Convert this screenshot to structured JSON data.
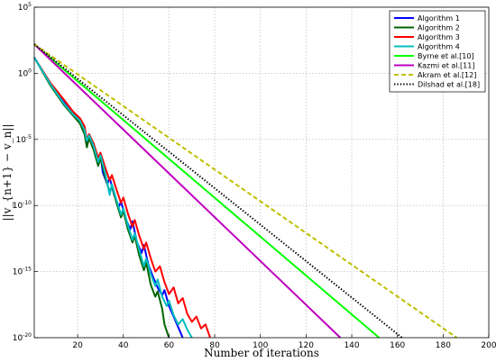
{
  "chart_data": {
    "type": "line",
    "title": "",
    "xlabel": "Number of iterations",
    "ylabel": "||v_{n+1} − v_n||",
    "xlim": [
      1,
      200
    ],
    "ylim_log10": [
      -20,
      5
    ],
    "y_scale": "log",
    "grid": true,
    "legend_position": "top-right",
    "x_ticks": [
      "20",
      "40",
      "60",
      "80",
      "100",
      "120",
      "140",
      "160",
      "180",
      "200"
    ],
    "y_ticks": [
      "10^5",
      "10^0",
      "10^-5",
      "10^-10",
      "10^-15",
      "10^-20"
    ],
    "series": [
      {
        "name": "Algorithm 1",
        "color": "#0000ff",
        "dash": "solid",
        "points": [
          [
            1,
            1.2
          ],
          [
            8,
            -0.8
          ],
          [
            14,
            -2.2
          ],
          [
            18,
            -3.0
          ],
          [
            21,
            -3.5
          ],
          [
            23,
            -4.2
          ],
          [
            24,
            -5.4
          ],
          [
            25,
            -4.9
          ],
          [
            27,
            -5.6
          ],
          [
            29,
            -6.8
          ],
          [
            30,
            -6.2
          ],
          [
            31,
            -7.5
          ],
          [
            33,
            -8.4
          ],
          [
            34,
            -7.9
          ],
          [
            36,
            -9.2
          ],
          [
            38,
            -10.1
          ],
          [
            39,
            -9.7
          ],
          [
            41,
            -11.0
          ],
          [
            43,
            -11.8
          ],
          [
            44,
            -11.2
          ],
          [
            46,
            -12.8
          ],
          [
            48,
            -13.6
          ],
          [
            49,
            -13.0
          ],
          [
            51,
            -14.5
          ],
          [
            53,
            -15.4
          ],
          [
            55,
            -16.2
          ],
          [
            57,
            -16.8
          ],
          [
            58,
            -16.4
          ],
          [
            60,
            -17.6
          ],
          [
            62,
            -18.4
          ],
          [
            64,
            -19.2
          ],
          [
            66,
            -20.0
          ]
        ]
      },
      {
        "name": "Algorithm 2",
        "color": "#006400",
        "dash": "solid",
        "points": [
          [
            1,
            1.2
          ],
          [
            8,
            -0.9
          ],
          [
            14,
            -2.4
          ],
          [
            18,
            -3.2
          ],
          [
            21,
            -3.8
          ],
          [
            23,
            -4.6
          ],
          [
            24,
            -5.6
          ],
          [
            25,
            -4.9
          ],
          [
            27,
            -5.8
          ],
          [
            29,
            -7.0
          ],
          [
            30,
            -6.4
          ],
          [
            32,
            -7.8
          ],
          [
            34,
            -9.0
          ],
          [
            35,
            -8.5
          ],
          [
            37,
            -9.8
          ],
          [
            39,
            -10.9
          ],
          [
            40,
            -10.4
          ],
          [
            42,
            -11.8
          ],
          [
            44,
            -12.8
          ],
          [
            45,
            -12.3
          ],
          [
            47,
            -13.8
          ],
          [
            49,
            -14.9
          ],
          [
            50,
            -14.3
          ],
          [
            52,
            -16.0
          ],
          [
            54,
            -16.9
          ],
          [
            55,
            -16.5
          ],
          [
            57,
            -17.8
          ],
          [
            58,
            -19.0
          ],
          [
            60,
            -20.0
          ]
        ]
      },
      {
        "name": "Algorithm 3",
        "color": "#ff0000",
        "dash": "solid",
        "points": [
          [
            1,
            1.2
          ],
          [
            8,
            -0.7
          ],
          [
            14,
            -2.0
          ],
          [
            18,
            -2.9
          ],
          [
            21,
            -3.4
          ],
          [
            23,
            -4.0
          ],
          [
            24,
            -5.0
          ],
          [
            25,
            -4.6
          ],
          [
            27,
            -5.3
          ],
          [
            29,
            -6.4
          ],
          [
            30,
            -6.0
          ],
          [
            32,
            -7.1
          ],
          [
            34,
            -8.1
          ],
          [
            35,
            -7.7
          ],
          [
            37,
            -8.8
          ],
          [
            39,
            -9.8
          ],
          [
            40,
            -9.4
          ],
          [
            42,
            -10.6
          ],
          [
            44,
            -11.6
          ],
          [
            45,
            -11.1
          ],
          [
            47,
            -12.3
          ],
          [
            49,
            -13.3
          ],
          [
            50,
            -12.8
          ],
          [
            52,
            -14.0
          ],
          [
            54,
            -15.0
          ],
          [
            56,
            -14.6
          ],
          [
            58,
            -15.8
          ],
          [
            60,
            -16.7
          ],
          [
            62,
            -16.2
          ],
          [
            64,
            -17.4
          ],
          [
            66,
            -17.0
          ],
          [
            68,
            -18.2
          ],
          [
            70,
            -18.8
          ],
          [
            72,
            -18.4
          ],
          [
            74,
            -19.3
          ],
          [
            76,
            -19.0
          ],
          [
            78,
            -20.0
          ]
        ]
      },
      {
        "name": "Algorithm 4",
        "color": "#00bfbf",
        "dash": "solid",
        "points": [
          [
            1,
            1.2
          ],
          [
            8,
            -0.8
          ],
          [
            14,
            -2.3
          ],
          [
            18,
            -3.1
          ],
          [
            21,
            -3.6
          ],
          [
            23,
            -4.3
          ],
          [
            24,
            -5.1
          ],
          [
            25,
            -4.7
          ],
          [
            27,
            -5.5
          ],
          [
            29,
            -6.7
          ],
          [
            30,
            -6.2
          ],
          [
            32,
            -7.5
          ],
          [
            33,
            -8.3
          ],
          [
            34,
            -9.2
          ],
          [
            35,
            -8.4
          ],
          [
            37,
            -9.6
          ],
          [
            39,
            -10.7
          ],
          [
            40,
            -10.2
          ],
          [
            42,
            -11.5
          ],
          [
            44,
            -12.6
          ],
          [
            45,
            -12.1
          ],
          [
            47,
            -13.4
          ],
          [
            49,
            -14.6
          ],
          [
            50,
            -14.0
          ],
          [
            52,
            -15.2
          ],
          [
            54,
            -16.1
          ],
          [
            55,
            -15.6
          ],
          [
            57,
            -16.9
          ],
          [
            59,
            -17.6
          ],
          [
            60,
            -17.2
          ],
          [
            62,
            -18.3
          ],
          [
            64,
            -19.0
          ],
          [
            66,
            -18.6
          ],
          [
            68,
            -19.4
          ],
          [
            70,
            -20.0
          ]
        ]
      },
      {
        "name": "Byrne et al.[10]",
        "color": "#00ff00",
        "dash": "solid",
        "points": [
          [
            1,
            2.2
          ],
          [
            152,
            -20.0
          ]
        ]
      },
      {
        "name": "Kazmi et al.[11]",
        "color": "#bf00bf",
        "dash": "solid",
        "points": [
          [
            1,
            2.2
          ],
          [
            135,
            -20.0
          ]
        ]
      },
      {
        "name": "Akram et al.[12]",
        "color": "#bfbf00",
        "dash": "dashed",
        "points": [
          [
            1,
            2.2
          ],
          [
            186,
            -20.0
          ]
        ]
      },
      {
        "name": "Dilshad et al.[18]",
        "color": "#000000",
        "dash": "dotted",
        "points": [
          [
            1,
            2.2
          ],
          [
            162,
            -20.0
          ]
        ]
      }
    ]
  }
}
